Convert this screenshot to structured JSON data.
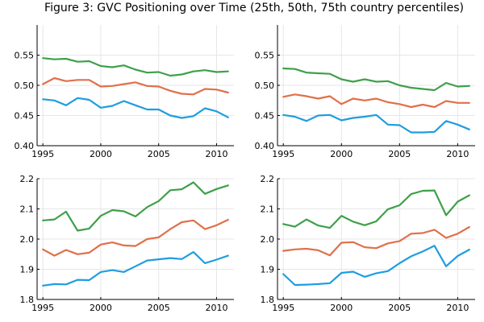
{
  "figure": {
    "title": "Figure 3: GVC Positioning over Time (25th, 50th, 75th country percentiles)"
  },
  "colors": {
    "p25": "#1f9de0",
    "p50": "#e0704a",
    "p75": "#3ea04a"
  },
  "chart_data": [
    {
      "type": "line",
      "panel": "top-left",
      "xlim": [
        1994.5,
        2011.5
      ],
      "ylim": [
        0.4,
        0.6
      ],
      "xticks": [
        1995,
        2000,
        2005,
        2010
      ],
      "yticks": [
        0.4,
        0.45,
        0.5,
        0.55
      ],
      "ytick_labels": [
        "0.40",
        "0.45",
        "0.50",
        "0.55"
      ],
      "grid": true,
      "x": [
        1995,
        1996,
        1997,
        1998,
        1999,
        2000,
        2001,
        2002,
        2003,
        2004,
        2005,
        2006,
        2007,
        2008,
        2009,
        2010,
        2011
      ],
      "series": [
        {
          "color": "#1f9de0",
          "values": [
            0.477,
            0.475,
            0.467,
            0.479,
            0.476,
            0.463,
            0.466,
            0.474,
            0.467,
            0.46,
            0.46,
            0.45,
            0.446,
            0.449,
            0.462,
            0.457,
            0.447
          ]
        },
        {
          "color": "#e0704a",
          "values": [
            0.502,
            0.512,
            0.507,
            0.509,
            0.509,
            0.498,
            0.499,
            0.502,
            0.505,
            0.499,
            0.498,
            0.491,
            0.486,
            0.485,
            0.494,
            0.493,
            0.488
          ]
        },
        {
          "color": "#3ea04a",
          "values": [
            0.545,
            0.543,
            0.544,
            0.539,
            0.54,
            0.532,
            0.53,
            0.533,
            0.526,
            0.521,
            0.522,
            0.516,
            0.518,
            0.523,
            0.525,
            0.522,
            0.523
          ]
        }
      ]
    },
    {
      "type": "line",
      "panel": "top-right",
      "xlim": [
        1994.5,
        2011.5
      ],
      "ylim": [
        0.4,
        0.6
      ],
      "xticks": [
        1995,
        2000,
        2005,
        2010
      ],
      "yticks": [
        0.4,
        0.45,
        0.5,
        0.55
      ],
      "ytick_labels": [
        "0.40",
        "0.45",
        "0.50",
        "0.55"
      ],
      "grid": true,
      "x": [
        1995,
        1996,
        1997,
        1998,
        1999,
        2000,
        2001,
        2002,
        2003,
        2004,
        2005,
        2006,
        2007,
        2008,
        2009,
        2010,
        2011
      ],
      "series": [
        {
          "color": "#1f9de0",
          "values": [
            0.451,
            0.448,
            0.441,
            0.45,
            0.451,
            0.442,
            0.446,
            0.448,
            0.451,
            0.435,
            0.434,
            0.422,
            0.422,
            0.423,
            0.441,
            0.435,
            0.427
          ]
        },
        {
          "color": "#e0704a",
          "values": [
            0.481,
            0.485,
            0.482,
            0.478,
            0.482,
            0.469,
            0.478,
            0.475,
            0.478,
            0.472,
            0.469,
            0.464,
            0.468,
            0.464,
            0.474,
            0.471,
            0.471
          ]
        },
        {
          "color": "#3ea04a",
          "values": [
            0.528,
            0.527,
            0.521,
            0.52,
            0.519,
            0.51,
            0.506,
            0.51,
            0.506,
            0.507,
            0.5,
            0.496,
            0.494,
            0.492,
            0.504,
            0.498,
            0.499
          ]
        }
      ]
    },
    {
      "type": "line",
      "panel": "bottom-left",
      "xlim": [
        1994.5,
        2011.5
      ],
      "ylim": [
        1.8,
        2.2
      ],
      "xticks": [
        1995,
        2000,
        2005,
        2010
      ],
      "yticks": [
        1.8,
        1.9,
        2.0,
        2.1,
        2.2
      ],
      "ytick_labels": [
        "1.8",
        "1.9",
        "2.0",
        "2.1",
        "2.2"
      ],
      "grid": true,
      "x": [
        1995,
        1996,
        1997,
        1998,
        1999,
        2000,
        2001,
        2002,
        2003,
        2004,
        2005,
        2006,
        2007,
        2008,
        2009,
        2010,
        2011
      ],
      "series": [
        {
          "color": "#1f9de0",
          "values": [
            1.846,
            1.851,
            1.85,
            1.865,
            1.864,
            1.891,
            1.897,
            1.891,
            1.91,
            1.929,
            1.933,
            1.937,
            1.934,
            1.957,
            1.92,
            1.932,
            1.945
          ]
        },
        {
          "color": "#e0704a",
          "values": [
            1.966,
            1.945,
            1.964,
            1.95,
            1.955,
            1.982,
            1.989,
            1.979,
            1.977,
            2.0,
            2.006,
            2.033,
            2.056,
            2.062,
            2.033,
            2.046,
            2.064
          ]
        },
        {
          "color": "#3ea04a",
          "values": [
            2.062,
            2.065,
            2.091,
            2.028,
            2.035,
            2.077,
            2.096,
            2.092,
            2.075,
            2.106,
            2.126,
            2.162,
            2.165,
            2.188,
            2.15,
            2.166,
            2.178
          ]
        }
      ]
    },
    {
      "type": "line",
      "panel": "bottom-right",
      "xlim": [
        1994.5,
        2011.5
      ],
      "ylim": [
        1.8,
        2.2
      ],
      "xticks": [
        1995,
        2000,
        2005,
        2010
      ],
      "yticks": [
        1.8,
        1.9,
        2.0,
        2.1,
        2.2
      ],
      "ytick_labels": [
        "1.8",
        "1.9",
        "2.0",
        "2.1",
        "2.2"
      ],
      "grid": true,
      "x": [
        1995,
        1996,
        1997,
        1998,
        1999,
        2000,
        2001,
        2002,
        2003,
        2004,
        2005,
        2006,
        2007,
        2008,
        2009,
        2010,
        2011
      ],
      "series": [
        {
          "color": "#1f9de0",
          "values": [
            1.884,
            1.848,
            1.849,
            1.851,
            1.854,
            1.888,
            1.892,
            1.875,
            1.887,
            1.894,
            1.92,
            1.943,
            1.959,
            1.978,
            1.91,
            1.944,
            1.965
          ]
        },
        {
          "color": "#e0704a",
          "values": [
            1.961,
            1.966,
            1.968,
            1.963,
            1.946,
            1.988,
            1.99,
            1.973,
            1.97,
            1.986,
            1.993,
            2.018,
            2.02,
            2.031,
            2.004,
            2.018,
            2.04
          ]
        },
        {
          "color": "#3ea04a",
          "values": [
            2.05,
            2.041,
            2.065,
            2.045,
            2.037,
            2.077,
            2.058,
            2.046,
            2.059,
            2.099,
            2.112,
            2.149,
            2.16,
            2.161,
            2.079,
            2.124,
            2.145
          ]
        }
      ]
    }
  ]
}
